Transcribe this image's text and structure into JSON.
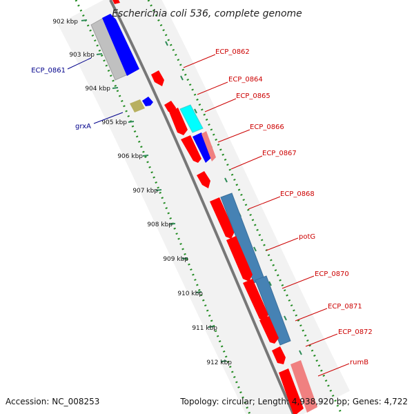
{
  "title": "Escherichia coli 536, complete genome",
  "footer": {
    "accession": "Accession: NC_008253",
    "summary": "Topology: circular; Length: 4,938,920 bp; Genes: 4,722"
  },
  "ticks": [
    "902 kbp",
    "903 kbp",
    "904 kbp",
    "905 kbp",
    "906 kbp",
    "907 kbp",
    "908 kbp",
    "909 kbp",
    "910 kbp",
    "911 kbp",
    "912 kbp"
  ],
  "colors": {
    "forward_cds": "#ff0000",
    "reverse_cds": "#0000ff",
    "left_label": "#00008b",
    "right_label": "#cc0000",
    "ring": "#808080",
    "tick_dots": "#228b22"
  },
  "labels_left": [
    {
      "name": "ECP_0861"
    },
    {
      "name": "grxA"
    }
  ],
  "labels_right": [
    {
      "name": "ECP_0862"
    },
    {
      "name": "ECP_0864"
    },
    {
      "name": "ECP_0865"
    },
    {
      "name": "ECP_0866"
    },
    {
      "name": "ECP_0867"
    },
    {
      "name": "ECP_0868"
    },
    {
      "name": "potG"
    },
    {
      "name": "ECP_0870"
    },
    {
      "name": "ECP_0871"
    },
    {
      "name": "ECP_0872"
    },
    {
      "name": "rumB"
    }
  ]
}
